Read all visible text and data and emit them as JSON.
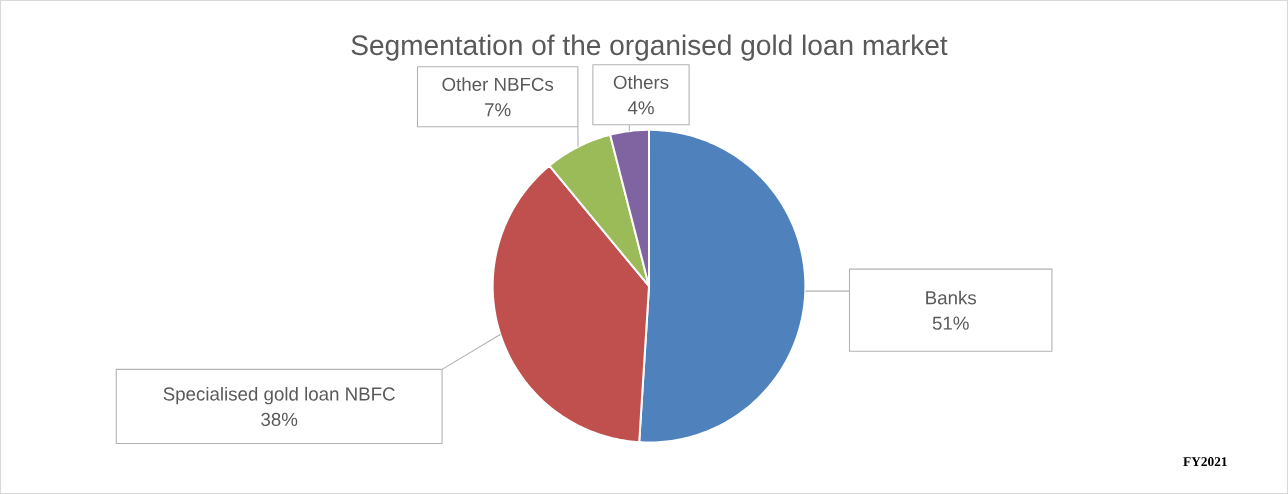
{
  "chart_data": {
    "type": "pie",
    "title": "Segmentation of the organised gold loan market",
    "categories": [
      "Banks",
      "Specialised gold loan NBFC",
      "Other NBFCs",
      "Others"
    ],
    "values": [
      51,
      38,
      7,
      4
    ],
    "value_labels": [
      "51%",
      "38%",
      "7%",
      "4%"
    ],
    "colors": [
      "#4f81bd",
      "#c0504d",
      "#9bbb59",
      "#8064a2"
    ],
    "annotations": [
      "FY2021"
    ]
  }
}
